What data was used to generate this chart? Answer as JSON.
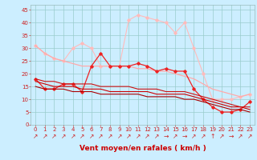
{
  "xlabel": "Vent moyen/en rafales ( km/h )",
  "background_color": "#cceeff",
  "grid_color": "#99cccc",
  "x_values": [
    0,
    1,
    2,
    3,
    4,
    5,
    6,
    7,
    8,
    9,
    10,
    11,
    12,
    13,
    14,
    15,
    16,
    17,
    18,
    19,
    20,
    21,
    22,
    23
  ],
  "series": [
    {
      "y": [
        31,
        28,
        26,
        25,
        30,
        32,
        30,
        23,
        23,
        23,
        41,
        43,
        42,
        41,
        40,
        36,
        40,
        30,
        20,
        10,
        10,
        10,
        11,
        12
      ],
      "color": "#ffbbbb",
      "linewidth": 0.8,
      "marker": "D",
      "markersize": 1.8
    },
    {
      "y": [
        31,
        28,
        26,
        25,
        24,
        23,
        23,
        23,
        23,
        23,
        23,
        22,
        22,
        21,
        21,
        20,
        19,
        18,
        16,
        14,
        13,
        12,
        11,
        12
      ],
      "color": "#ffaaaa",
      "linewidth": 0.9,
      "marker": null
    },
    {
      "y": [
        18,
        14,
        14,
        16,
        16,
        13,
        23,
        28,
        23,
        23,
        23,
        24,
        23,
        21,
        22,
        21,
        21,
        14,
        10,
        7,
        5,
        5,
        6,
        9
      ],
      "color": "#ee2222",
      "linewidth": 0.9,
      "marker": "D",
      "markersize": 1.8
    },
    {
      "y": [
        18,
        17,
        17,
        16,
        16,
        16,
        16,
        15,
        15,
        15,
        15,
        14,
        14,
        14,
        13,
        13,
        13,
        12,
        11,
        10,
        9,
        8,
        7,
        7
      ],
      "color": "#cc1111",
      "linewidth": 0.8,
      "marker": null
    },
    {
      "y": [
        17,
        16,
        15,
        15,
        15,
        14,
        14,
        14,
        13,
        13,
        13,
        13,
        13,
        12,
        12,
        12,
        12,
        11,
        10,
        9,
        8,
        7,
        7,
        6
      ],
      "color": "#cc0000",
      "linewidth": 0.8,
      "marker": null
    },
    {
      "y": [
        15,
        14,
        14,
        14,
        13,
        13,
        13,
        12,
        12,
        12,
        12,
        12,
        11,
        11,
        11,
        11,
        10,
        10,
        9,
        8,
        7,
        6,
        6,
        5
      ],
      "color": "#aa0000",
      "linewidth": 0.8,
      "marker": null
    }
  ],
  "arrow_chars": [
    "↗",
    "↗",
    "↗",
    "↗",
    "↗",
    "↗",
    "↗",
    "↗",
    "↗",
    "↗",
    "↗",
    "↗",
    "↗",
    "↗",
    "→",
    "↗",
    "→",
    "↗",
    "↗",
    "↑",
    "↗",
    "→",
    "↗",
    "↗"
  ],
  "ylim": [
    0,
    47
  ],
  "xlim": [
    -0.5,
    23.5
  ],
  "yticks": [
    0,
    5,
    10,
    15,
    20,
    25,
    30,
    35,
    40,
    45
  ],
  "xticks": [
    0,
    1,
    2,
    3,
    4,
    5,
    6,
    7,
    8,
    9,
    10,
    11,
    12,
    13,
    14,
    15,
    16,
    17,
    18,
    19,
    20,
    21,
    22,
    23
  ],
  "tick_fontsize": 5,
  "label_fontsize": 6.5,
  "arrow_fontsize": 5.5
}
